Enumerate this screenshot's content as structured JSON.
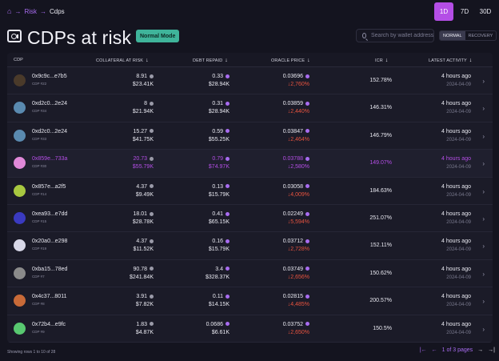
{
  "breadcrumb": {
    "home_icon": "home-icon",
    "items": [
      "Risk",
      "Cdps"
    ],
    "separator": "→"
  },
  "periods": [
    {
      "label": "1D",
      "active": true
    },
    {
      "label": "7D",
      "active": false
    },
    {
      "label": "30D",
      "active": false
    }
  ],
  "header": {
    "title": "CDPs at risk",
    "badge": "Normal Mode",
    "icon": "safe-icon"
  },
  "search": {
    "placeholder": "Search by wallet address"
  },
  "mode_toggle": {
    "options": [
      "NORMAL",
      "RECOVERY"
    ],
    "selected": "NORMAL"
  },
  "columns": [
    "CDP",
    "COLLATERAL AT RISK",
    "DEBT REPAID",
    "ORACLE PRICE",
    "ICR",
    "LATEST ACTIVITY"
  ],
  "sort_arrow": "↓",
  "colors": {
    "accent": "#b44ee6",
    "badge": "#3fb49a",
    "down": "#e8533f",
    "bg": "#14141f"
  },
  "rows": [
    {
      "id": "0x9c9c...e7b5",
      "sub": "CDP #22",
      "coll": "8.91",
      "coll_usd": "$23.41K",
      "debt": "0.33",
      "debt_usd": "$28.94K",
      "price": "0.03696",
      "change": "↓2,760%",
      "icr": "152.78%",
      "time": "4 hours ago",
      "date": "2024-04-09",
      "avatar": "#4a3a2a",
      "highlight": false
    },
    {
      "id": "0xd2c0...2e24",
      "sub": "CDP #34",
      "coll": "8",
      "coll_usd": "$21.94K",
      "debt": "0.31",
      "debt_usd": "$28.94K",
      "price": "0.03859",
      "change": "↓2,440%",
      "icr": "146.31%",
      "time": "4 hours ago",
      "date": "2024-04-09",
      "avatar": "#5a8ab0",
      "highlight": false
    },
    {
      "id": "0xd2c0...2e24",
      "sub": "CDP #33",
      "coll": "15.27",
      "coll_usd": "$41.75K",
      "debt": "0.59",
      "debt_usd": "$55.25K",
      "price": "0.03847",
      "change": "↓2,464%",
      "icr": "146.79%",
      "time": "4 hours ago",
      "date": "2024-04-09",
      "avatar": "#5a8ab0",
      "highlight": false
    },
    {
      "id": "0x859e...733a",
      "sub": "CDP #30",
      "coll": "20.73",
      "coll_usd": "$55.79K",
      "debt": "0.79",
      "debt_usd": "$74.97K",
      "price": "0.03788",
      "change": "↓2,580%",
      "icr": "149.07%",
      "time": "4 hours ago",
      "date": "2024-04-09",
      "avatar": "#e088d8",
      "highlight": true
    },
    {
      "id": "0x857e...a2f5",
      "sub": "CDP #14",
      "coll": "4.37",
      "coll_usd": "$9.49K",
      "debt": "0.13",
      "debt_usd": "$15.79K",
      "price": "0.03058",
      "change": "↓4,009%",
      "icr": "184.63%",
      "time": "4 hours ago",
      "date": "2024-04-09",
      "avatar": "#a8c840",
      "highlight": false
    },
    {
      "id": "0xea93...e7dd",
      "sub": "CDP #15",
      "coll": "18.01",
      "coll_usd": "$28.78K",
      "debt": "0.41",
      "debt_usd": "$65.15K",
      "price": "0.02249",
      "change": "↓5,594%",
      "icr": "251.07%",
      "time": "4 hours ago",
      "date": "2024-04-09",
      "avatar": "#3a3ac0",
      "highlight": false
    },
    {
      "id": "0x20a0...e298",
      "sub": "CDP #19",
      "coll": "4.37",
      "coll_usd": "$11.52K",
      "debt": "0.16",
      "debt_usd": "$15.79K",
      "price": "0.03712",
      "change": "↓2,728%",
      "icr": "152.11%",
      "time": "4 hours ago",
      "date": "2024-04-09",
      "avatar": "#d8d8e8",
      "highlight": false
    },
    {
      "id": "0xba15...78ed",
      "sub": "CDP #7",
      "coll": "90.78",
      "coll_usd": "$241.84K",
      "debt": "3.4",
      "debt_usd": "$328.37K",
      "price": "0.03749",
      "change": "↓2,656%",
      "icr": "150.62%",
      "time": "4 hours ago",
      "date": "2024-04-09",
      "avatar": "#8a8a8a",
      "highlight": false
    },
    {
      "id": "0x4c37...8011",
      "sub": "CDP #8",
      "coll": "3.91",
      "coll_usd": "$7.82K",
      "debt": "0.11",
      "debt_usd": "$14.15K",
      "price": "0.02815",
      "change": "↓4,485%",
      "icr": "200.57%",
      "time": "4 hours ago",
      "date": "2024-04-09",
      "avatar": "#c86a38",
      "highlight": false
    },
    {
      "id": "0x72b4...e9fc",
      "sub": "CDP #9",
      "coll": "1.83",
      "coll_usd": "$4.87K",
      "debt": "0.0686",
      "debt_usd": "$6.61K",
      "price": "0.03752",
      "change": "↓2,650%",
      "icr": "150.5%",
      "time": "4 hours ago",
      "date": "2024-04-09",
      "avatar": "#58c870",
      "highlight": false
    }
  ],
  "footer": {
    "showing": "Showing rows 1 to 10 of 28",
    "pages": "1 of 3 pages",
    "first": "|←",
    "prev": "←",
    "next": "→",
    "last": "→|"
  }
}
